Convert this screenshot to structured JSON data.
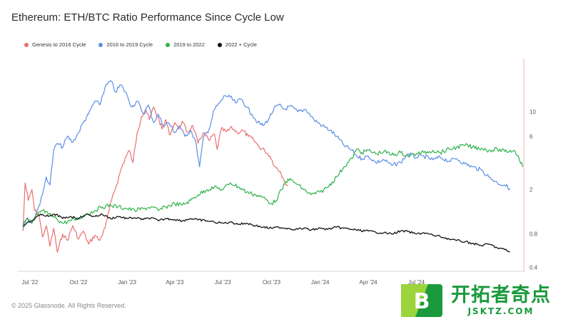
{
  "title": "Ethereum: ETH/BTC Ratio Performance Since Cycle Low",
  "footer": "© 2025 Glassnode. All Rights Reserved.",
  "watermark": {
    "text_cn": "开拓者奇点",
    "url": "JSKTZ.COM",
    "logo_letter": "B"
  },
  "chart_data": {
    "type": "line",
    "title": "Ethereum: ETH/BTC Ratio Performance Since Cycle Low",
    "x_ticks": [
      "Jul '22",
      "Oct '22",
      "Jan '23",
      "Apr '23",
      "Jul '23",
      "Oct '23",
      "Jan '24",
      "Apr '24",
      "Jul '24"
    ],
    "y_ticks": [
      0.4,
      0.8,
      2,
      6,
      10
    ],
    "y_scale": "log",
    "ylim": [
      0.37,
      30
    ],
    "xlim": [
      "2022-06-15",
      "2025-01-20"
    ],
    "grid": false,
    "legend_position": "top-left",
    "series": [
      {
        "name": "Genesis to 2016 Cycle",
        "color": "#e8706f",
        "points": [
          [
            "2022-06-18",
            0.85
          ],
          [
            "2022-06-22",
            2.3
          ],
          [
            "2022-06-28",
            1.6
          ],
          [
            "2022-07-05",
            2.0
          ],
          [
            "2022-07-10",
            1.3
          ],
          [
            "2022-07-18",
            1.2
          ],
          [
            "2022-07-25",
            0.75
          ],
          [
            "2022-08-01",
            0.95
          ],
          [
            "2022-08-08",
            0.62
          ],
          [
            "2022-08-15",
            0.9
          ],
          [
            "2022-08-22",
            0.55
          ],
          [
            "2022-09-01",
            0.8
          ],
          [
            "2022-09-10",
            0.7
          ],
          [
            "2022-09-20",
            0.95
          ],
          [
            "2022-10-01",
            0.72
          ],
          [
            "2022-10-10",
            0.85
          ],
          [
            "2022-10-20",
            0.65
          ],
          [
            "2022-11-01",
            0.78
          ],
          [
            "2022-11-10",
            0.7
          ],
          [
            "2022-11-20",
            0.9
          ],
          [
            "2022-11-28",
            1.3
          ],
          [
            "2022-12-05",
            1.8
          ],
          [
            "2022-12-12",
            2.2
          ],
          [
            "2022-12-20",
            3.0
          ],
          [
            "2022-12-28",
            3.8
          ],
          [
            "2023-01-05",
            4.5
          ],
          [
            "2023-01-12",
            3.5
          ],
          [
            "2023-01-20",
            6.5
          ],
          [
            "2023-01-28",
            9.0
          ],
          [
            "2023-02-05",
            10.5
          ],
          [
            "2023-02-12",
            8.5
          ],
          [
            "2023-02-20",
            11.0
          ],
          [
            "2023-02-28",
            9.0
          ],
          [
            "2023-03-08",
            7.0
          ],
          [
            "2023-03-15",
            8.5
          ],
          [
            "2023-03-22",
            6.2
          ],
          [
            "2023-04-01",
            8.0
          ],
          [
            "2023-04-08",
            7.0
          ],
          [
            "2023-04-15",
            8.2
          ],
          [
            "2023-04-25",
            6.5
          ],
          [
            "2023-05-05",
            7.5
          ],
          [
            "2023-05-15",
            5.2
          ],
          [
            "2023-05-25",
            6.5
          ],
          [
            "2023-06-05",
            5.5
          ],
          [
            "2023-06-15",
            6.3
          ],
          [
            "2023-06-20",
            4.6
          ],
          [
            "2023-06-28",
            7.0
          ],
          [
            "2023-07-08",
            6.6
          ],
          [
            "2023-07-18",
            7.2
          ],
          [
            "2023-07-28",
            6.5
          ],
          [
            "2023-08-08",
            6.8
          ],
          [
            "2023-08-18",
            6.0
          ],
          [
            "2023-08-28",
            5.6
          ],
          [
            "2023-09-08",
            4.8
          ],
          [
            "2023-09-18",
            4.5
          ],
          [
            "2023-09-28",
            4.0
          ],
          [
            "2023-10-08",
            3.2
          ],
          [
            "2023-10-18",
            2.9
          ],
          [
            "2023-10-25",
            2.4
          ],
          [
            "2023-11-01",
            2.15
          ]
        ]
      },
      {
        "name": "2016 to 2019 Cycle",
        "color": "#5b8fe6",
        "points": [
          [
            "2022-06-18",
            0.9
          ],
          [
            "2022-06-25",
            1.1
          ],
          [
            "2022-07-05",
            1.0
          ],
          [
            "2022-07-15",
            1.3
          ],
          [
            "2022-07-25",
            1.8
          ],
          [
            "2022-08-01",
            2.6
          ],
          [
            "2022-08-08",
            2.2
          ],
          [
            "2022-08-15",
            4.5
          ],
          [
            "2022-08-22",
            5.2
          ],
          [
            "2022-09-01",
            4.8
          ],
          [
            "2022-09-10",
            6.0
          ],
          [
            "2022-09-20",
            5.3
          ],
          [
            "2022-10-01",
            6.5
          ],
          [
            "2022-10-10",
            8.0
          ],
          [
            "2022-10-20",
            9.5
          ],
          [
            "2022-11-01",
            12.5
          ],
          [
            "2022-11-10",
            11.5
          ],
          [
            "2022-11-20",
            16.5
          ],
          [
            "2022-12-01",
            19.0
          ],
          [
            "2022-12-10",
            15.0
          ],
          [
            "2022-12-20",
            17.5
          ],
          [
            "2023-01-01",
            14.0
          ],
          [
            "2023-01-10",
            11.0
          ],
          [
            "2023-01-20",
            12.5
          ],
          [
            "2023-02-01",
            9.5
          ],
          [
            "2023-02-10",
            11.5
          ],
          [
            "2023-02-20",
            8.0
          ],
          [
            "2023-03-01",
            9.5
          ],
          [
            "2023-03-10",
            7.5
          ],
          [
            "2023-03-20",
            8.0
          ],
          [
            "2023-04-01",
            6.5
          ],
          [
            "2023-04-10",
            7.5
          ],
          [
            "2023-04-20",
            6.0
          ],
          [
            "2023-05-01",
            6.8
          ],
          [
            "2023-05-10",
            5.5
          ],
          [
            "2023-05-18",
            3.2
          ],
          [
            "2023-05-25",
            5.8
          ],
          [
            "2023-06-05",
            7.0
          ],
          [
            "2023-06-15",
            10.5
          ],
          [
            "2023-06-25",
            12.0
          ],
          [
            "2023-07-05",
            14.0
          ],
          [
            "2023-07-15",
            13.5
          ],
          [
            "2023-07-25",
            12.0
          ],
          [
            "2023-08-05",
            13.0
          ],
          [
            "2023-08-15",
            11.0
          ],
          [
            "2023-08-25",
            9.5
          ],
          [
            "2023-09-05",
            8.0
          ],
          [
            "2023-09-15",
            7.5
          ],
          [
            "2023-09-25",
            8.5
          ],
          [
            "2023-10-05",
            10.5
          ],
          [
            "2023-10-15",
            11.5
          ],
          [
            "2023-10-25",
            10.5
          ],
          [
            "2023-11-05",
            11.2
          ],
          [
            "2023-11-20",
            10.0
          ],
          [
            "2023-12-05",
            10.5
          ],
          [
            "2023-12-20",
            8.5
          ],
          [
            "2024-01-05",
            7.5
          ],
          [
            "2024-01-20",
            6.8
          ],
          [
            "2024-02-01",
            6.0
          ],
          [
            "2024-02-15",
            5.0
          ],
          [
            "2024-03-01",
            4.5
          ],
          [
            "2024-03-10",
            4.0
          ],
          [
            "2024-03-20",
            3.8
          ],
          [
            "2024-04-01",
            4.0
          ],
          [
            "2024-04-15",
            3.5
          ],
          [
            "2024-05-01",
            3.7
          ],
          [
            "2024-05-15",
            3.3
          ],
          [
            "2024-06-01",
            3.5
          ],
          [
            "2024-06-15",
            4.2
          ],
          [
            "2024-07-01",
            3.9
          ],
          [
            "2024-07-15",
            4.0
          ],
          [
            "2024-08-01",
            3.7
          ],
          [
            "2024-08-15",
            3.9
          ],
          [
            "2024-09-01",
            3.6
          ],
          [
            "2024-09-15",
            3.8
          ],
          [
            "2024-10-01",
            3.4
          ],
          [
            "2024-10-15",
            3.2
          ],
          [
            "2024-11-01",
            3.0
          ],
          [
            "2024-11-15",
            2.6
          ],
          [
            "2024-12-01",
            2.3
          ],
          [
            "2024-12-15",
            2.2
          ],
          [
            "2024-12-25",
            2.05
          ]
        ]
      },
      {
        "name": "2019 to 2022",
        "color": "#2fb24a",
        "points": [
          [
            "2022-06-18",
            0.95
          ],
          [
            "2022-06-25",
            1.1
          ],
          [
            "2022-07-05",
            1.0
          ],
          [
            "2022-07-15",
            1.2
          ],
          [
            "2022-07-25",
            1.3
          ],
          [
            "2022-08-05",
            1.2
          ],
          [
            "2022-08-20",
            1.1
          ],
          [
            "2022-09-01",
            1.0
          ],
          [
            "2022-09-15",
            1.05
          ],
          [
            "2022-10-01",
            1.1
          ],
          [
            "2022-10-15",
            1.2
          ],
          [
            "2022-11-01",
            1.3
          ],
          [
            "2022-11-15",
            1.4
          ],
          [
            "2022-12-01",
            1.45
          ],
          [
            "2022-12-15",
            1.4
          ],
          [
            "2023-01-01",
            1.35
          ],
          [
            "2023-01-15",
            1.3
          ],
          [
            "2023-02-01",
            1.35
          ],
          [
            "2023-02-15",
            1.4
          ],
          [
            "2023-03-01",
            1.3
          ],
          [
            "2023-03-15",
            1.4
          ],
          [
            "2023-04-01",
            1.5
          ],
          [
            "2023-04-15",
            1.45
          ],
          [
            "2023-05-01",
            1.6
          ],
          [
            "2023-05-15",
            1.8
          ],
          [
            "2023-06-01",
            2.0
          ],
          [
            "2023-06-15",
            2.1
          ],
          [
            "2023-07-01",
            2.0
          ],
          [
            "2023-07-15",
            2.3
          ],
          [
            "2023-08-01",
            2.1
          ],
          [
            "2023-08-15",
            1.9
          ],
          [
            "2023-09-01",
            1.8
          ],
          [
            "2023-09-15",
            1.7
          ],
          [
            "2023-10-01",
            1.5
          ],
          [
            "2023-10-10",
            1.6
          ],
          [
            "2023-10-20",
            2.0
          ],
          [
            "2023-11-01",
            2.5
          ],
          [
            "2023-11-15",
            2.3
          ],
          [
            "2023-12-01",
            2.0
          ],
          [
            "2023-12-15",
            1.8
          ],
          [
            "2024-01-01",
            1.9
          ],
          [
            "2024-01-15",
            2.1
          ],
          [
            "2024-02-01",
            2.6
          ],
          [
            "2024-02-15",
            3.2
          ],
          [
            "2024-03-01",
            3.8
          ],
          [
            "2024-03-10",
            4.6
          ],
          [
            "2024-03-20",
            4.3
          ],
          [
            "2024-04-01",
            4.5
          ],
          [
            "2024-04-15",
            4.2
          ],
          [
            "2024-05-01",
            4.4
          ],
          [
            "2024-05-15",
            4.1
          ],
          [
            "2024-06-01",
            4.3
          ],
          [
            "2024-06-15",
            4.0
          ],
          [
            "2024-07-01",
            4.2
          ],
          [
            "2024-07-15",
            4.3
          ],
          [
            "2024-08-01",
            4.5
          ],
          [
            "2024-08-15",
            4.3
          ],
          [
            "2024-09-01",
            4.6
          ],
          [
            "2024-09-15",
            4.8
          ],
          [
            "2024-10-01",
            5.0
          ],
          [
            "2024-10-15",
            4.8
          ],
          [
            "2024-11-01",
            4.7
          ],
          [
            "2024-11-15",
            4.5
          ],
          [
            "2024-12-01",
            4.6
          ],
          [
            "2024-12-15",
            4.4
          ],
          [
            "2025-01-01",
            4.5
          ],
          [
            "2025-01-10",
            4.0
          ],
          [
            "2025-01-18",
            3.2
          ]
        ]
      },
      {
        "name": "2022 + Cycle",
        "color": "#111111",
        "points": [
          [
            "2022-06-18",
            0.95
          ],
          [
            "2022-06-25",
            1.0
          ],
          [
            "2022-07-05",
            1.05
          ],
          [
            "2022-07-15",
            1.15
          ],
          [
            "2022-07-25",
            1.2
          ],
          [
            "2022-08-05",
            1.15
          ],
          [
            "2022-08-20",
            1.2
          ],
          [
            "2022-09-01",
            1.1
          ],
          [
            "2022-09-15",
            1.15
          ],
          [
            "2022-10-01",
            1.1
          ],
          [
            "2022-10-15",
            1.2
          ],
          [
            "2022-11-01",
            1.15
          ],
          [
            "2022-11-15",
            1.2
          ],
          [
            "2022-12-01",
            1.1
          ],
          [
            "2022-12-15",
            1.15
          ],
          [
            "2023-01-01",
            1.1
          ],
          [
            "2023-01-15",
            1.12
          ],
          [
            "2023-02-01",
            1.08
          ],
          [
            "2023-02-15",
            1.12
          ],
          [
            "2023-03-01",
            1.05
          ],
          [
            "2023-03-15",
            1.1
          ],
          [
            "2023-04-01",
            1.08
          ],
          [
            "2023-04-15",
            1.05
          ],
          [
            "2023-05-01",
            1.1
          ],
          [
            "2023-05-15",
            1.07
          ],
          [
            "2023-06-01",
            1.05
          ],
          [
            "2023-06-15",
            1.02
          ],
          [
            "2023-07-01",
            1.0
          ],
          [
            "2023-07-15",
            1.02
          ],
          [
            "2023-08-01",
            0.98
          ],
          [
            "2023-08-15",
            1.0
          ],
          [
            "2023-09-01",
            0.95
          ],
          [
            "2023-09-15",
            0.92
          ],
          [
            "2023-10-01",
            0.9
          ],
          [
            "2023-10-15",
            0.92
          ],
          [
            "2023-11-01",
            0.9
          ],
          [
            "2023-11-15",
            0.88
          ],
          [
            "2023-12-01",
            0.9
          ],
          [
            "2023-12-15",
            0.87
          ],
          [
            "2024-01-01",
            0.9
          ],
          [
            "2024-01-15",
            0.88
          ],
          [
            "2024-02-01",
            0.92
          ],
          [
            "2024-02-15",
            0.9
          ],
          [
            "2024-03-01",
            0.88
          ],
          [
            "2024-03-15",
            0.86
          ],
          [
            "2024-04-01",
            0.85
          ],
          [
            "2024-04-15",
            0.83
          ],
          [
            "2024-05-01",
            0.82
          ],
          [
            "2024-05-15",
            0.8
          ],
          [
            "2024-06-01",
            0.85
          ],
          [
            "2024-06-15",
            0.84
          ],
          [
            "2024-07-01",
            0.8
          ],
          [
            "2024-07-15",
            0.82
          ],
          [
            "2024-08-01",
            0.78
          ],
          [
            "2024-08-15",
            0.76
          ],
          [
            "2024-09-01",
            0.72
          ],
          [
            "2024-09-15",
            0.7
          ],
          [
            "2024-10-01",
            0.68
          ],
          [
            "2024-10-15",
            0.66
          ],
          [
            "2024-11-01",
            0.63
          ],
          [
            "2024-11-15",
            0.65
          ],
          [
            "2024-12-01",
            0.6
          ],
          [
            "2024-12-15",
            0.58
          ],
          [
            "2024-12-25",
            0.55
          ]
        ]
      }
    ]
  }
}
